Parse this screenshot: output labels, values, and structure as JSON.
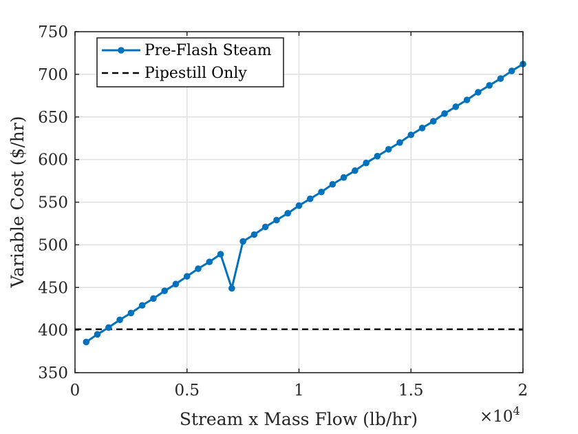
{
  "chart_data": {
    "type": "line",
    "xlabel": "Stream x Mass Flow (lb/hr)",
    "ylabel": "Variable Cost ($/hr)",
    "x_exponent_prefix": "×10",
    "x_exponent_power": "4",
    "xlim": [
      0,
      2
    ],
    "ylim": [
      350,
      750
    ],
    "xticks": [
      0,
      0.5,
      1,
      1.5,
      2
    ],
    "xtick_labels": [
      "0",
      "0.5",
      "1",
      "1.5",
      "2"
    ],
    "yticks": [
      350,
      400,
      450,
      500,
      550,
      600,
      650,
      700,
      750
    ],
    "ytick_labels": [
      "350",
      "400",
      "450",
      "500",
      "550",
      "600",
      "650",
      "700",
      "750"
    ],
    "grid": true,
    "legend_position": "top-left",
    "series": [
      {
        "name": "Pre-Flash Steam",
        "color": "#0072BD",
        "style": "solid",
        "marker": "circle",
        "x": [
          0.05,
          0.1,
          0.15,
          0.2,
          0.25,
          0.3,
          0.35,
          0.4,
          0.45,
          0.5,
          0.55,
          0.6,
          0.65,
          0.7,
          0.75,
          0.8,
          0.85,
          0.9,
          0.95,
          1.0,
          1.05,
          1.1,
          1.15,
          1.2,
          1.25,
          1.3,
          1.35,
          1.4,
          1.45,
          1.5,
          1.55,
          1.6,
          1.65,
          1.7,
          1.75,
          1.8,
          1.85,
          1.9,
          1.95,
          2.0
        ],
        "values": [
          386,
          395,
          403,
          412,
          420,
          429,
          437,
          446,
          454,
          463,
          472,
          480,
          489,
          449,
          504,
          512,
          521,
          529,
          537,
          546,
          554,
          562,
          571,
          579,
          587,
          596,
          604,
          612,
          620,
          629,
          637,
          645,
          654,
          662,
          670,
          679,
          687,
          695,
          704,
          712
        ]
      },
      {
        "name": "Pipestill Only",
        "color": "#000000",
        "style": "dashed",
        "marker": "none",
        "x": [
          0,
          2
        ],
        "values": [
          401,
          401
        ]
      }
    ]
  }
}
